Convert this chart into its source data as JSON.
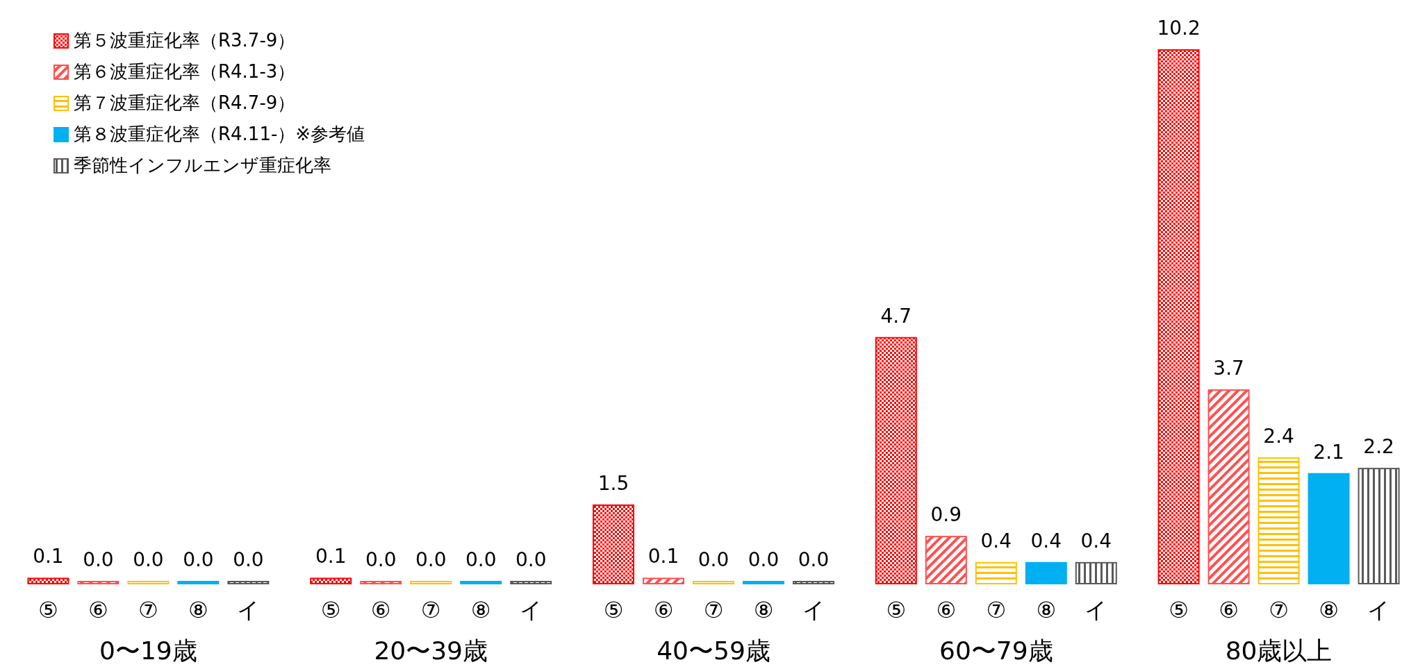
{
  "chart_data": {
    "type": "bar",
    "categories": [
      "0〜19歳",
      "20〜39歳",
      "40〜59歳",
      "60〜79歳",
      "80歳以上"
    ],
    "series": [
      {
        "name": "第５波重症化率（R3.7-9）",
        "color": "#ff0000",
        "values": [
          0.1,
          0.1,
          1.5,
          4.7,
          10.2
        ],
        "value_labels": [
          "0.1",
          "0.1",
          "1.5",
          "4.7",
          "10.2"
        ]
      },
      {
        "name": "第６波重症化率（R4.1-3）",
        "color": "#ff5050",
        "values": [
          0.0,
          0.0,
          0.1,
          0.9,
          3.7
        ],
        "value_labels": [
          "0.0",
          "0.0",
          "0.1",
          "0.9",
          "3.7"
        ]
      },
      {
        "name": "第７波重症化率（R4.7-9）",
        "color": "#ffc000",
        "values": [
          0.0,
          0.0,
          0.0,
          0.4,
          2.4
        ],
        "value_labels": [
          "0.0",
          "0.0",
          "0.0",
          "0.4",
          "2.4"
        ]
      },
      {
        "name": "第８波重症化率（R4.11-）※参考値",
        "color": "#00b0f0",
        "values": [
          0.0,
          0.0,
          0.0,
          0.4,
          2.1
        ],
        "value_labels": [
          "0.0",
          "0.0",
          "0.0",
          "0.4",
          "2.1"
        ]
      },
      {
        "name": "季節性インフルエンザ重症化率",
        "color": "#595959",
        "values": [
          0.0,
          0.0,
          0.0,
          0.4,
          2.2
        ],
        "value_labels": [
          "0.0",
          "0.0",
          "0.0",
          "0.4",
          "2.2"
        ]
      }
    ],
    "annotations": [
      "⑤",
      "⑥",
      "⑦",
      "⑧",
      "イ"
    ],
    "legend": "top left"
  }
}
